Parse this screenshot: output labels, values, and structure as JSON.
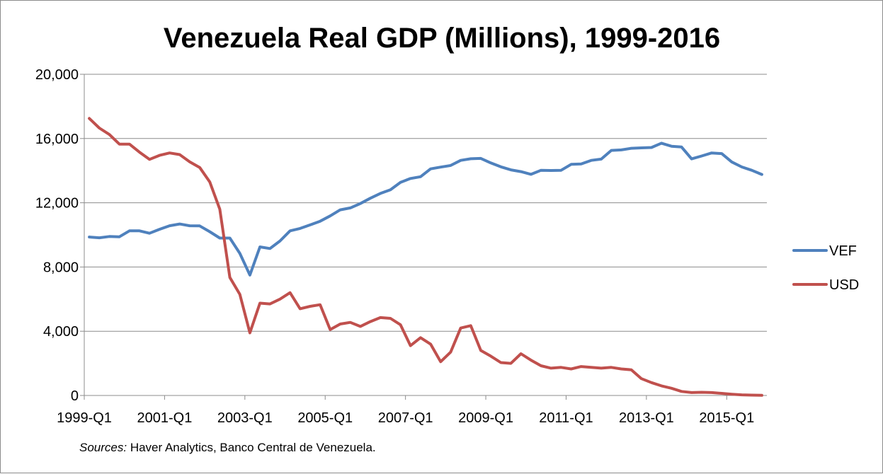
{
  "chart_data": {
    "type": "line",
    "title": "Venezuela Real GDP (Millions), 1999-2016",
    "xlabel": "",
    "ylabel": "",
    "ylim": [
      0,
      20000
    ],
    "y_ticks": [
      "0",
      "4,000",
      "8,000",
      "12,000",
      "16,000",
      "20,000"
    ],
    "x_tick_labels": [
      "1999-Q1",
      "2001-Q1",
      "2003-Q1",
      "2005-Q1",
      "2007-Q1",
      "2009-Q1",
      "2011-Q1",
      "2013-Q1",
      "2015-Q1"
    ],
    "x": [
      "1999-Q1",
      "1999-Q2",
      "1999-Q3",
      "1999-Q4",
      "2000-Q1",
      "2000-Q2",
      "2000-Q3",
      "2000-Q4",
      "2001-Q1",
      "2001-Q2",
      "2001-Q3",
      "2001-Q4",
      "2002-Q1",
      "2002-Q2",
      "2002-Q3",
      "2002-Q4",
      "2003-Q1",
      "2003-Q2",
      "2003-Q3",
      "2003-Q4",
      "2004-Q1",
      "2004-Q2",
      "2004-Q3",
      "2004-Q4",
      "2005-Q1",
      "2005-Q2",
      "2005-Q3",
      "2005-Q4",
      "2006-Q1",
      "2006-Q2",
      "2006-Q3",
      "2006-Q4",
      "2007-Q1",
      "2007-Q2",
      "2007-Q3",
      "2007-Q4",
      "2008-Q1",
      "2008-Q2",
      "2008-Q3",
      "2008-Q4",
      "2009-Q1",
      "2009-Q2",
      "2009-Q3",
      "2009-Q4",
      "2010-Q1",
      "2010-Q2",
      "2010-Q3",
      "2010-Q4",
      "2011-Q1",
      "2011-Q2",
      "2011-Q3",
      "2011-Q4",
      "2012-Q1",
      "2012-Q2",
      "2012-Q3",
      "2012-Q4",
      "2013-Q1",
      "2013-Q2",
      "2013-Q3",
      "2013-Q4",
      "2014-Q1",
      "2014-Q2",
      "2014-Q3",
      "2014-Q4",
      "2015-Q1",
      "2015-Q2",
      "2015-Q3",
      "2015-Q4"
    ],
    "grid": true,
    "legend_placement": "right",
    "series": [
      {
        "name": "VEF",
        "color": "#4f81bd",
        "values": [
          9870,
          9820,
          9900,
          9880,
          10250,
          10250,
          10100,
          10350,
          10570,
          10680,
          10570,
          10560,
          10200,
          9800,
          9800,
          8850,
          7500,
          9250,
          9150,
          9620,
          10250,
          10400,
          10620,
          10850,
          11180,
          11560,
          11680,
          11950,
          12280,
          12580,
          12810,
          13270,
          13510,
          13620,
          14110,
          14220,
          14320,
          14640,
          14740,
          14760,
          14480,
          14240,
          14050,
          13940,
          13770,
          14020,
          14010,
          14020,
          14390,
          14420,
          14640,
          14720,
          15260,
          15290,
          15390,
          15420,
          15440,
          15710,
          15520,
          15470,
          14730,
          14910,
          15100,
          15060,
          14540,
          14230,
          14020,
          13760
        ]
      },
      {
        "name": "USD",
        "color": "#c0504d",
        "values": [
          17250,
          16650,
          16250,
          15650,
          15650,
          15150,
          14700,
          14950,
          15100,
          15000,
          14550,
          14200,
          13300,
          11600,
          7350,
          6300,
          3900,
          5750,
          5700,
          6000,
          6400,
          5400,
          5550,
          5650,
          4100,
          4450,
          4550,
          4300,
          4600,
          4850,
          4800,
          4400,
          3100,
          3600,
          3200,
          2100,
          2700,
          4200,
          4350,
          2800,
          2450,
          2050,
          2000,
          2600,
          2200,
          1850,
          1700,
          1750,
          1650,
          1800,
          1750,
          1700,
          1750,
          1650,
          1600,
          1050,
          800,
          600,
          450,
          250,
          180,
          200,
          180,
          130,
          80,
          40,
          20,
          10
        ]
      }
    ]
  },
  "source_note": {
    "prefix": "Sources:",
    "text": " Haver Analytics, Banco Central de Venezuela."
  }
}
